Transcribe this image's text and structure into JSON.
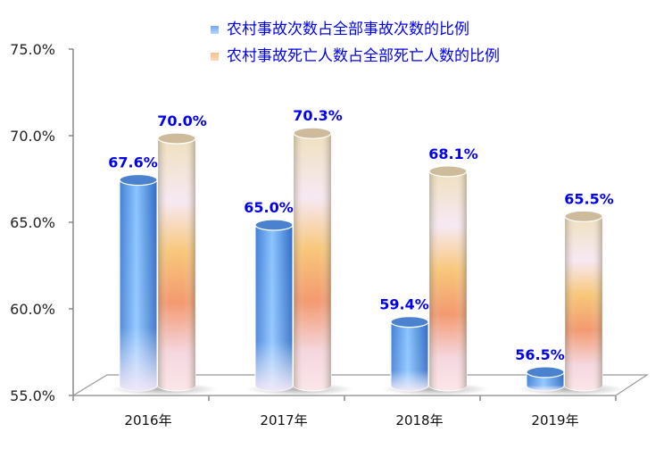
{
  "chart_data": {
    "type": "bar",
    "style": "3d-cylinder",
    "title": "",
    "xlabel": "",
    "ylabel": "",
    "categories": [
      "2016年",
      "2017年",
      "2018年",
      "2019年"
    ],
    "series": [
      {
        "name": "农村事故次数占全部事故次数的比例",
        "values": [
          67.6,
          65.0,
          59.4,
          56.5
        ],
        "labels": [
          "67.6%",
          "65.0%",
          "59.4%",
          "56.5%"
        ],
        "color": "#5b9bed"
      },
      {
        "name": "农村事故死亡人数占全部死亡人数的比例",
        "values": [
          70.0,
          70.3,
          68.1,
          65.5
        ],
        "labels": [
          "70.0%",
          "70.3%",
          "68.1%",
          "65.5%"
        ],
        "color": "#f5b27a"
      }
    ],
    "ylim": [
      55,
      75
    ],
    "yticks": [
      "55.0%",
      "60.0%",
      "65.0%",
      "70.0%",
      "75.0%"
    ],
    "grid": false,
    "legend_position": "top-right",
    "data_label_color": "#0000ee"
  },
  "legend": {
    "items": [
      {
        "label": "农村事故次数占全部事故次数的比例"
      },
      {
        "label": "农村事故死亡人数占全部死亡人数的比例"
      }
    ]
  }
}
